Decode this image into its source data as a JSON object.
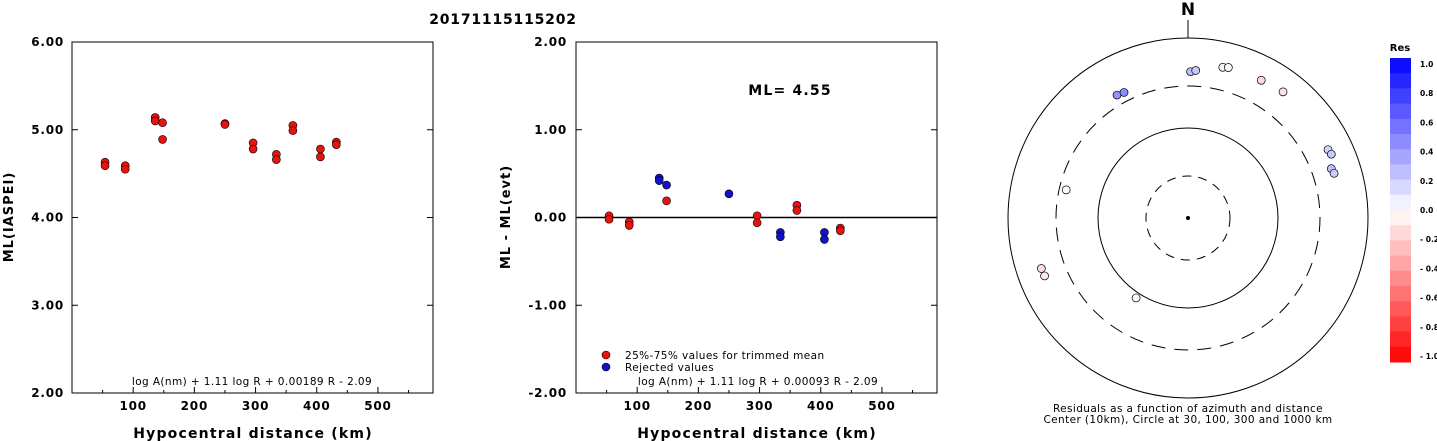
{
  "title": "20171115115202",
  "chart_data": [
    {
      "type": "scatter",
      "xlabel": "Hypocentral distance (km)",
      "ylabel": "ML(IASPEI)",
      "xlim": [
        0,
        590
      ],
      "ylim": [
        2.0,
        6.0
      ],
      "x_ticks": [
        "100",
        "200",
        "300",
        "400",
        "500"
      ],
      "y_ticks": [
        "2.00",
        "3.00",
        "4.00",
        "5.00",
        "6.00"
      ],
      "formula": "log A(nm) + 1.11 log R + 0.00189 R - 2.09",
      "series": [
        {
          "color": "#e8130f",
          "points": [
            [
              54,
              4.63
            ],
            [
              54,
              4.59
            ],
            [
              87,
              4.59
            ],
            [
              87,
              4.55
            ],
            [
              136,
              5.14
            ],
            [
              136,
              5.1
            ],
            [
              148,
              5.08
            ],
            [
              148,
              4.89
            ],
            [
              250,
              5.07
            ],
            [
              250,
              5.06
            ],
            [
              296,
              4.85
            ],
            [
              296,
              4.78
            ],
            [
              334,
              4.72
            ],
            [
              334,
              4.66
            ],
            [
              361,
              5.05
            ],
            [
              361,
              4.99
            ],
            [
              406,
              4.78
            ],
            [
              406,
              4.69
            ],
            [
              432,
              4.86
            ],
            [
              432,
              4.83
            ]
          ]
        }
      ]
    },
    {
      "type": "scatter",
      "xlabel": "Hypocentral distance (km)",
      "ylabel": "ML - ML(evt)",
      "xlim": [
        0,
        590
      ],
      "ylim": [
        -2.0,
        2.0
      ],
      "x_ticks": [
        "100",
        "200",
        "300",
        "400",
        "500"
      ],
      "y_ticks": [
        "-2.00",
        "-1.00",
        "0.00",
        "1.00",
        "2.00"
      ],
      "annotation": "ML= 4.55",
      "formula": "log A(nm) + 1.11 log R + 0.00093 R - 2.09",
      "legend_position": "bottom-left",
      "series": [
        {
          "name": "25%-75% values for trimmed mean",
          "color": "#e8130f",
          "points": [
            [
              54,
              0.02
            ],
            [
              54,
              -0.02
            ],
            [
              87,
              -0.05
            ],
            [
              87,
              -0.09
            ],
            [
              148,
              0.19
            ],
            [
              296,
              0.02
            ],
            [
              296,
              -0.06
            ],
            [
              361,
              0.14
            ],
            [
              361,
              0.08
            ],
            [
              432,
              -0.12
            ],
            [
              432,
              -0.15
            ]
          ]
        },
        {
          "name": "Rejected values",
          "color": "#1212c8",
          "points": [
            [
              136,
              0.45
            ],
            [
              136,
              0.42
            ],
            [
              148,
              0.37
            ],
            [
              250,
              0.27
            ],
            [
              334,
              -0.17
            ],
            [
              334,
              -0.22
            ],
            [
              406,
              -0.17
            ],
            [
              406,
              -0.25
            ]
          ]
        }
      ]
    },
    {
      "type": "polar-scatter",
      "north_label": "N",
      "caption_line1": "Residuals as a function of azimuth and distance",
      "caption_line2": "Center (10km), Circle at 30, 100, 300 and 1000 km",
      "rings_km": [
        30,
        100,
        300,
        1000
      ],
      "points": [
        {
          "az": 13,
          "dist_km": 530,
          "res": -0.05
        },
        {
          "az": 15,
          "dist_km": 545,
          "res": 0.02
        },
        {
          "az": 28,
          "dist_km": 548,
          "res": -0.15
        },
        {
          "az": 37,
          "dist_km": 575,
          "res": -0.12
        },
        {
          "az": 1,
          "dist_km": 430,
          "res": 0.27
        },
        {
          "az": 3,
          "dist_km": 445,
          "res": 0.22
        },
        {
          "az": 330,
          "dist_km": 385,
          "res": 0.42
        },
        {
          "az": 333,
          "dist_km": 375,
          "res": 0.45
        },
        {
          "az": 64,
          "dist_km": 545,
          "res": 0.17
        },
        {
          "az": 66,
          "dist_km": 560,
          "res": 0.22
        },
        {
          "az": 71,
          "dist_km": 490,
          "res": 0.25
        },
        {
          "az": 73,
          "dist_km": 505,
          "res": 0.2
        },
        {
          "az": 283,
          "dist_km": 250,
          "res": -0.02
        },
        {
          "az": 248,
          "dist_km": 530,
          "res": -0.1
        },
        {
          "az": 251,
          "dist_km": 535,
          "res": -0.15
        },
        {
          "az": 213,
          "dist_km": 115,
          "res": 0.02
        }
      ]
    }
  ],
  "colorbar": {
    "title": "Res",
    "tick_labels": [
      "1.0",
      "0.8",
      "0.6",
      "0.4",
      "0.2",
      "0.0",
      "- 0.2",
      "- 0.4",
      "- 0.6",
      "- 0.8",
      "- 1.0"
    ]
  }
}
